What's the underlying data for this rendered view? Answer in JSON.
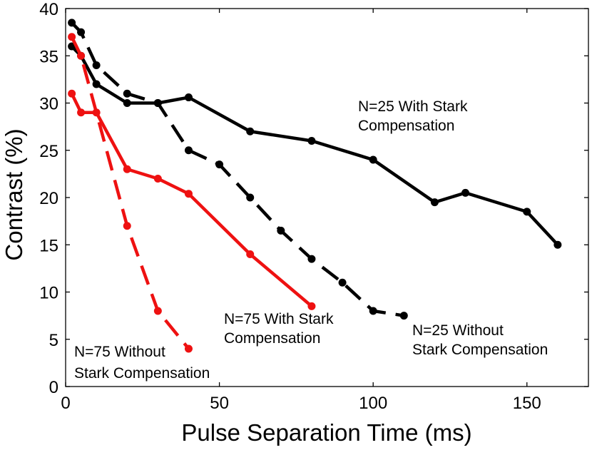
{
  "chart_data": {
    "type": "line",
    "title": "",
    "xlabel": "Pulse Separation Time (ms)",
    "ylabel": "Contrast (%)",
    "xlim": [
      0,
      170
    ],
    "ylim": [
      0,
      40
    ],
    "xticks": [
      0,
      50,
      100,
      150
    ],
    "yticks": [
      0,
      5,
      10,
      15,
      20,
      25,
      30,
      35,
      40
    ],
    "grid": false,
    "series": [
      {
        "name": "N=25 With Stark Compensation",
        "color": "#000000",
        "style": "solid",
        "x": [
          2,
          5,
          10,
          20,
          30,
          40,
          60,
          80,
          100,
          120,
          130,
          150,
          160
        ],
        "y": [
          36,
          35,
          32,
          30,
          30,
          30.6,
          27,
          26,
          24,
          19.5,
          20.5,
          18.5,
          15
        ]
      },
      {
        "name": "N=25 Without Stark Compensation",
        "color": "#000000",
        "style": "dashed",
        "x": [
          2,
          5,
          10,
          20,
          30,
          40,
          50,
          60,
          70,
          80,
          90,
          100,
          110
        ],
        "y": [
          38.5,
          37.5,
          34,
          31,
          30,
          25,
          23.5,
          20,
          16.5,
          13.5,
          11,
          8,
          7.5
        ]
      },
      {
        "name": "N=75 With Stark Compensation",
        "color": "#ee1111",
        "style": "solid",
        "x": [
          2,
          5,
          10,
          20,
          30,
          40,
          60,
          80
        ],
        "y": [
          31,
          29,
          29,
          23,
          22,
          20.4,
          14,
          8.5
        ]
      },
      {
        "name": "N=75 Without Stark Compensation",
        "color": "#ee1111",
        "style": "dashed",
        "x": [
          2,
          5,
          20,
          30,
          40
        ],
        "y": [
          37,
          35,
          17,
          8,
          4
        ]
      }
    ],
    "annotations": [
      {
        "series": 0,
        "lines": [
          "N=25 With Stark",
          "Compensation"
        ]
      },
      {
        "series": 1,
        "lines": [
          "N=25 Without",
          "Stark Compensation"
        ]
      },
      {
        "series": 2,
        "lines": [
          "N=75 With Stark",
          "Compensation"
        ]
      },
      {
        "series": 3,
        "lines": [
          "N=75 Without",
          "Stark Compensation"
        ]
      }
    ]
  }
}
